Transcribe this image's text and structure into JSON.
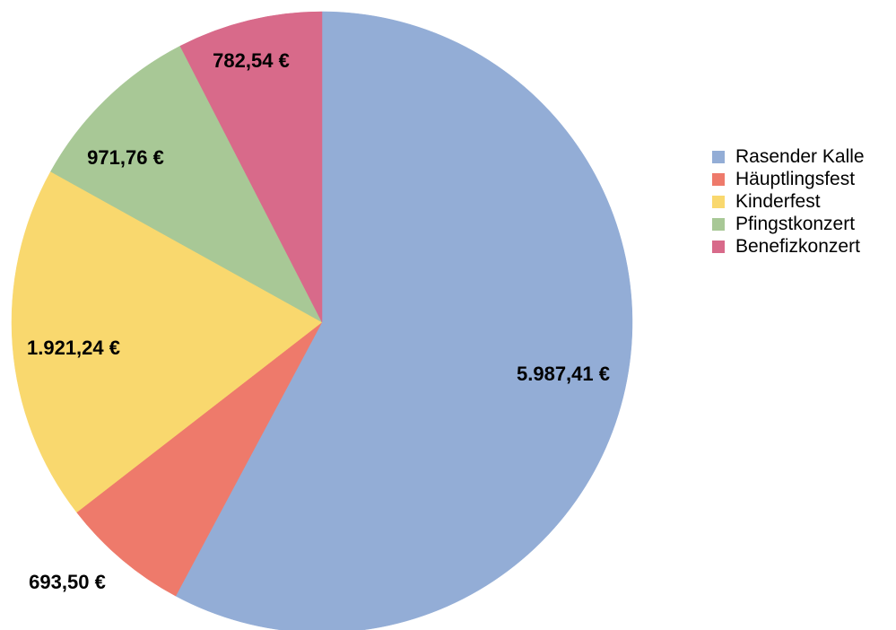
{
  "chart_data": {
    "type": "pie",
    "title": "",
    "legend_position": "right",
    "slices": [
      {
        "name": "Rasender Kalle",
        "value": 5987.41,
        "label": "5.987,41 €",
        "color": "#93add6"
      },
      {
        "name": "Häuptlingsfest",
        "value": 693.5,
        "label": "693,50 €",
        "color": "#ee7a6b"
      },
      {
        "name": "Kinderfest",
        "value": 1921.24,
        "label": "1.921,24 €",
        "color": "#f9d86e"
      },
      {
        "name": "Pfingstkonzert",
        "value": 971.76,
        "label": "971,76 €",
        "color": "#a8c896"
      },
      {
        "name": "Benefizkonzert",
        "value": 782.54,
        "label": "782,54 €",
        "color": "#d86a8a"
      }
    ]
  }
}
